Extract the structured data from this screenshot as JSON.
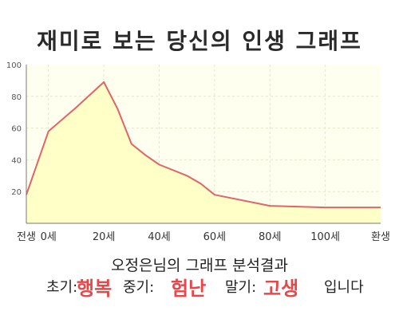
{
  "chart_data": {
    "type": "area",
    "title": "재미로 보는 당신의 인생 그래프",
    "x": [
      -8,
      0,
      10,
      20,
      25,
      30,
      35,
      40,
      50,
      55,
      60,
      80,
      100,
      120
    ],
    "y": [
      18,
      58,
      73,
      89,
      72,
      50,
      43,
      37,
      30,
      25,
      18,
      11,
      10,
      10
    ],
    "xlim": [
      -8,
      120
    ],
    "ylim": [
      0,
      100
    ],
    "x_tick_labels": [
      {
        "x": -8,
        "label": "전생"
      },
      {
        "x": 0,
        "label": "0세"
      },
      {
        "x": 20,
        "label": "20세"
      },
      {
        "x": 40,
        "label": "40세"
      },
      {
        "x": 60,
        "label": "60세"
      },
      {
        "x": 80,
        "label": "80세"
      },
      {
        "x": 100,
        "label": "100세"
      },
      {
        "x": 120,
        "label": "환생"
      }
    ],
    "y_ticks": [
      20,
      40,
      60,
      80,
      100
    ],
    "grid": true,
    "colors": {
      "line": "#e36464",
      "fill": "#ffffc8",
      "plot_bg": "#fffff0",
      "grid": "#e6e6c8"
    }
  },
  "summary_line": "오정은님의 그래프 분석결과",
  "result": {
    "early_label": "초기:",
    "early_value": "행복",
    "mid_label": "중기:",
    "mid_value": "험난",
    "late_label": "말기:",
    "late_value": "고생",
    "suffix": "입니다"
  }
}
